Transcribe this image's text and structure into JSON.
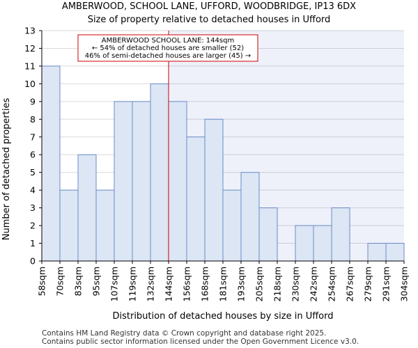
{
  "chart_data": {
    "type": "bar",
    "title_line1": "AMBERWOOD, SCHOOL LANE, UFFORD, WOODBRIDGE, IP13 6DX",
    "title_line2": "Size of property relative to detached houses in Ufford",
    "xlabel": "Distribution of detached houses by size in Ufford",
    "ylabel": "Number of detached properties",
    "tick_labels": [
      "58sqm",
      "70sqm",
      "83sqm",
      "95sqm",
      "107sqm",
      "119sqm",
      "132sqm",
      "144sqm",
      "156sqm",
      "168sqm",
      "181sqm",
      "193sqm",
      "205sqm",
      "218sqm",
      "230sqm",
      "242sqm",
      "254sqm",
      "267sqm",
      "279sqm",
      "291sqm",
      "304sqm"
    ],
    "values": [
      11,
      4,
      6,
      4,
      9,
      9,
      10,
      9,
      7,
      8,
      4,
      5,
      3,
      0,
      2,
      2,
      3,
      0,
      1,
      1
    ],
    "ylim": [
      0,
      13
    ],
    "yticks": [
      0,
      1,
      2,
      3,
      4,
      5,
      6,
      7,
      8,
      9,
      10,
      11,
      12,
      13
    ],
    "marker_bin": 7,
    "marker_label": "AMBERWOOD SCHOOL LANE: 144sqm",
    "annotation_line1": "AMBERWOOD SCHOOL LANE: 144sqm",
    "annotation_line2": "← 54% of detached houses are smaller (52)",
    "annotation_line3": "46% of semi-detached houses are larger (45) →",
    "colors": {
      "bar_fill": "#dce6f4",
      "bar_stroke": "#6a8cc8",
      "highlight_bg": "#eef1fa",
      "marker": "#cc0000",
      "grid": "#000000"
    }
  },
  "footer": {
    "line1": "Contains HM Land Registry data © Crown copyright and database right 2025.",
    "line2": "Contains public sector information licensed under the Open Government Licence v3.0."
  }
}
